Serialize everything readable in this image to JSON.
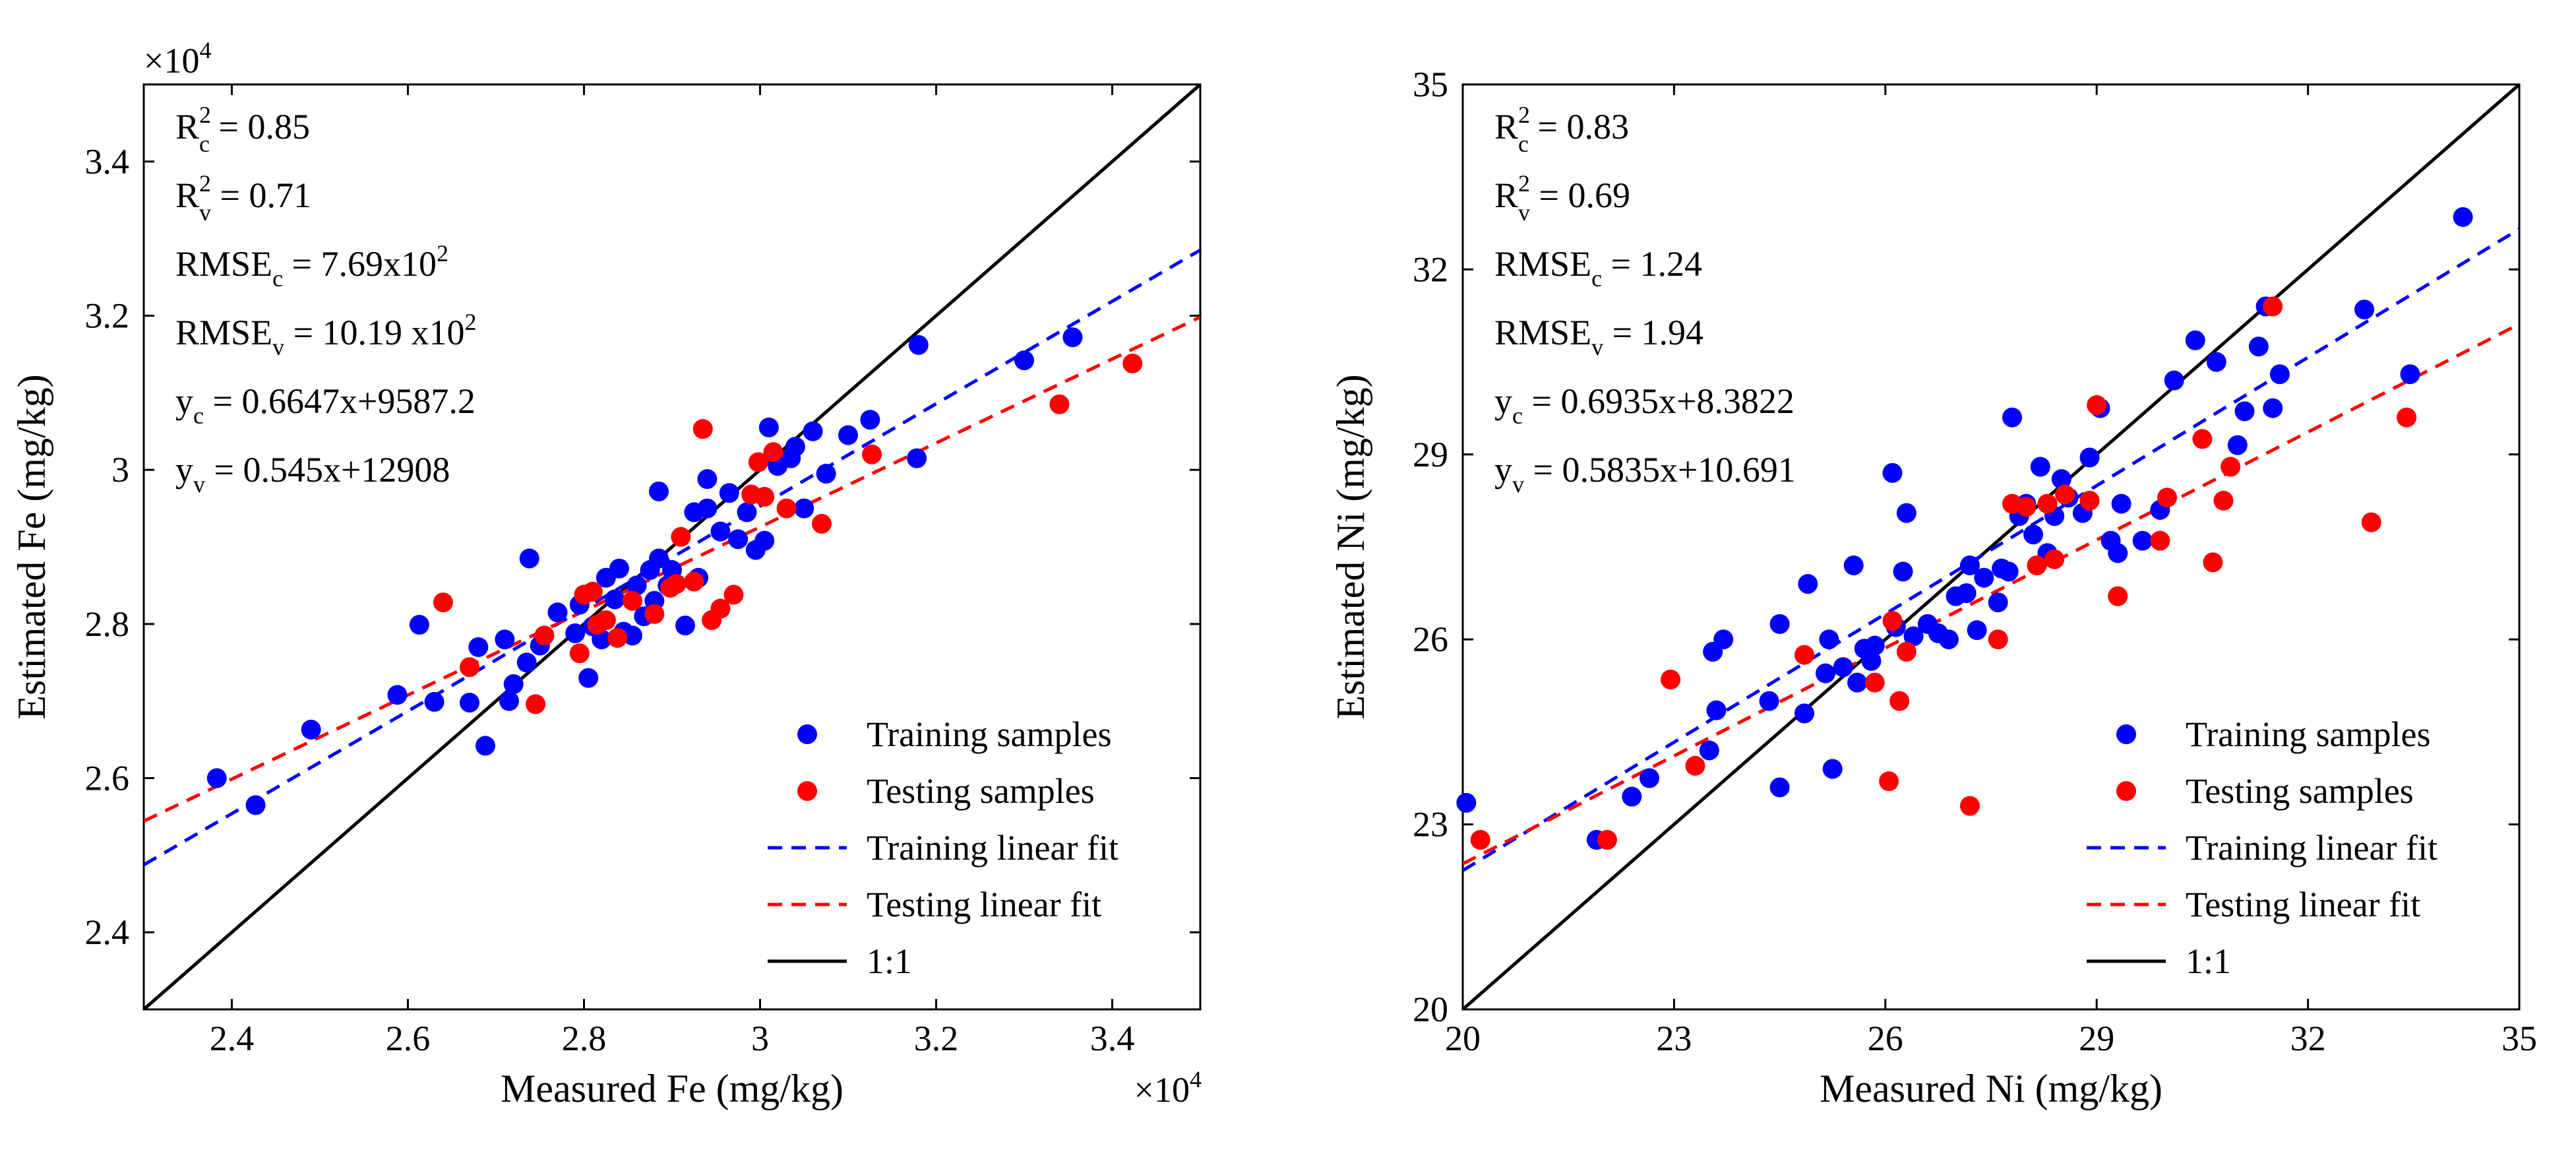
{
  "chart_data": [
    {
      "type": "scatter",
      "panel": "Fe",
      "xlabel": "Measured Fe (mg/kg)",
      "ylabel": "Estimated Fe (mg/kg)",
      "xlim": [
        23000,
        35000
      ],
      "ylim": [
        23000,
        35000
      ],
      "x_ticks": [
        24000,
        26000,
        28000,
        30000,
        32000,
        34000
      ],
      "x_tick_labels": [
        "2.4",
        "2.6",
        "2.8",
        "3",
        "3.2",
        "3.4"
      ],
      "y_ticks": [
        24000,
        26000,
        28000,
        30000,
        32000,
        34000
      ],
      "y_tick_labels": [
        "2.4",
        "2.6",
        "2.8",
        "3",
        "3.2",
        "3.4"
      ],
      "x_exponent_label": "×10",
      "x_exponent_power": "4",
      "y_exponent_label": "×10",
      "y_exponent_power": "4",
      "stats": [
        {
          "base": "R",
          "sup": "2",
          "sub": "c",
          "rest": " = 0.85"
        },
        {
          "base": "R",
          "sup": "2",
          "sub": "v",
          "rest": " = 0.71"
        },
        {
          "base": "RMSE",
          "sup": "",
          "sub": "c",
          "rest": " = 7.69x10",
          "rest_sup": "2"
        },
        {
          "base": "RMSE",
          "sup": "",
          "sub": "v",
          "rest": " = 10.19 x10",
          "rest_sup": "2"
        },
        {
          "base": "y",
          "sup": "",
          "sub": "c",
          "rest": " = 0.6647x+9587.2"
        },
        {
          "base": "y",
          "sup": "",
          "sub": "v",
          "rest": " = 0.545x+12908"
        }
      ],
      "legend": [
        {
          "label": "Training samples",
          "kind": "marker",
          "color": "#0000ff"
        },
        {
          "label": "Testing samples",
          "kind": "marker",
          "color": "#ff0000"
        },
        {
          "label": "Training linear fit",
          "kind": "dashed",
          "color": "#0000ff"
        },
        {
          "label": "Testing linear fit",
          "kind": "dashed",
          "color": "#ff0000"
        },
        {
          "label": "1:1",
          "kind": "solid",
          "color": "#000000"
        }
      ],
      "fits": [
        {
          "name": "Training linear fit",
          "slope": 0.6647,
          "intercept": 9587.2,
          "color": "#0000ff"
        },
        {
          "name": "Testing linear fit",
          "slope": 0.545,
          "intercept": 12908,
          "color": "#ff0000"
        }
      ],
      "series": [
        {
          "name": "Training samples",
          "color": "#0000ff",
          "points": [
            [
              23830,
              26000
            ],
            [
              24270,
              25650
            ],
            [
              24900,
              26630
            ],
            [
              25880,
              27080
            ],
            [
              26130,
              27990
            ],
            [
              26300,
              26990
            ],
            [
              26700,
              26980
            ],
            [
              26800,
              27700
            ],
            [
              26880,
              26420
            ],
            [
              27100,
              27800
            ],
            [
              27200,
              27220
            ],
            [
              27350,
              27500
            ],
            [
              27380,
              28850
            ],
            [
              27500,
              27720
            ],
            [
              27700,
              28150
            ],
            [
              27900,
              27880
            ],
            [
              27950,
              28250
            ],
            [
              28050,
              27300
            ],
            [
              28100,
              27970
            ],
            [
              28200,
              27800
            ],
            [
              28250,
              28600
            ],
            [
              28350,
              28320
            ],
            [
              28400,
              28720
            ],
            [
              28450,
              27900
            ],
            [
              28550,
              27850
            ],
            [
              28600,
              28500
            ],
            [
              28680,
              28100
            ],
            [
              28750,
              28700
            ],
            [
              28800,
              28300
            ],
            [
              28850,
              28850
            ],
            [
              28950,
              28500
            ],
            [
              29000,
              28700
            ],
            [
              29150,
              27980
            ],
            [
              29250,
              29450
            ],
            [
              29300,
              28600
            ],
            [
              29400,
              29500
            ],
            [
              29550,
              29200
            ],
            [
              29650,
              29700
            ],
            [
              29750,
              29100
            ],
            [
              29850,
              29450
            ],
            [
              29950,
              28960
            ],
            [
              30050,
              29080
            ],
            [
              30100,
              30550
            ],
            [
              30200,
              30050
            ],
            [
              30400,
              30300
            ],
            [
              30500,
              29500
            ],
            [
              30600,
              30500
            ],
            [
              30750,
              29950
            ],
            [
              31000,
              30450
            ],
            [
              31250,
              30650
            ],
            [
              31780,
              30150
            ],
            [
              31800,
              31620
            ],
            [
              33000,
              31420
            ],
            [
              33550,
              31720
            ],
            [
              28850,
              29720
            ],
            [
              29400,
              29880
            ],
            [
              30350,
              30150
            ],
            [
              27150,
              27000
            ]
          ]
        },
        {
          "name": "Testing samples",
          "color": "#ff0000",
          "points": [
            [
              26400,
              28280
            ],
            [
              26700,
              27440
            ],
            [
              27450,
              26960
            ],
            [
              27550,
              27850
            ],
            [
              27950,
              27620
            ],
            [
              28000,
              28380
            ],
            [
              28100,
              28420
            ],
            [
              28150,
              27990
            ],
            [
              28250,
              28050
            ],
            [
              28380,
              27820
            ],
            [
              28550,
              28300
            ],
            [
              28800,
              28130
            ],
            [
              28980,
              28470
            ],
            [
              29050,
              28520
            ],
            [
              29100,
              29130
            ],
            [
              29250,
              28550
            ],
            [
              29350,
              30530
            ],
            [
              29450,
              28050
            ],
            [
              29550,
              28200
            ],
            [
              29700,
              28380
            ],
            [
              29900,
              29680
            ],
            [
              29980,
              30100
            ],
            [
              30050,
              29650
            ],
            [
              30150,
              30230
            ],
            [
              30300,
              29500
            ],
            [
              30700,
              29300
            ],
            [
              31270,
              30200
            ],
            [
              33400,
              30850
            ],
            [
              34230,
              31380
            ]
          ]
        }
      ]
    },
    {
      "type": "scatter",
      "panel": "Ni",
      "xlabel": "Measured Ni (mg/kg)",
      "ylabel": "Estimated Ni (mg/kg)",
      "xlim": [
        20,
        35
      ],
      "ylim": [
        20,
        35
      ],
      "x_ticks": [
        20,
        23,
        26,
        29,
        32,
        35
      ],
      "x_tick_labels": [
        "20",
        "23",
        "26",
        "29",
        "32",
        "35"
      ],
      "y_ticks": [
        20,
        23,
        26,
        29,
        32,
        35
      ],
      "y_tick_labels": [
        "20",
        "23",
        "26",
        "29",
        "32",
        "35"
      ],
      "stats": [
        {
          "base": "R",
          "sup": "2",
          "sub": "c",
          "rest": " = 0.83"
        },
        {
          "base": "R",
          "sup": "2",
          "sub": "v",
          "rest": " = 0.69"
        },
        {
          "base": "RMSE",
          "sup": "",
          "sub": "c",
          "rest": " = 1.24"
        },
        {
          "base": "RMSE",
          "sup": "",
          "sub": "v",
          "rest": " = 1.94"
        },
        {
          "base": "y",
          "sup": "",
          "sub": "c",
          "rest": " = 0.6935x+8.3822"
        },
        {
          "base": "y",
          "sup": "",
          "sub": "v",
          "rest": " = 0.5835x+10.691"
        }
      ],
      "legend": [
        {
          "label": "Training samples",
          "kind": "marker",
          "color": "#0000ff"
        },
        {
          "label": "Testing samples",
          "kind": "marker",
          "color": "#ff0000"
        },
        {
          "label": "Training linear fit",
          "kind": "dashed",
          "color": "#0000ff"
        },
        {
          "label": "Testing linear fit",
          "kind": "dashed",
          "color": "#ff0000"
        },
        {
          "label": "1:1",
          "kind": "solid",
          "color": "#000000"
        }
      ],
      "fits": [
        {
          "name": "Training linear fit",
          "slope": 0.6935,
          "intercept": 8.3822,
          "color": "#0000ff"
        },
        {
          "name": "Testing linear fit",
          "slope": 0.5835,
          "intercept": 10.691,
          "color": "#ff0000"
        }
      ],
      "series": [
        {
          "name": "Training samples",
          "color": "#0000ff",
          "points": [
            [
              20.05,
              23.35
            ],
            [
              21.9,
              22.75
            ],
            [
              22.4,
              23.45
            ],
            [
              22.65,
              23.75
            ],
            [
              23.5,
              24.2
            ],
            [
              23.55,
              25.8
            ],
            [
              23.6,
              24.85
            ],
            [
              23.7,
              26.0
            ],
            [
              24.35,
              25.0
            ],
            [
              24.5,
              23.6
            ],
            [
              24.5,
              26.25
            ],
            [
              24.85,
              24.8
            ],
            [
              24.9,
              26.9
            ],
            [
              25.15,
              25.45
            ],
            [
              25.2,
              26.0
            ],
            [
              25.25,
              23.9
            ],
            [
              25.4,
              25.55
            ],
            [
              25.55,
              27.2
            ],
            [
              25.6,
              25.3
            ],
            [
              25.7,
              25.85
            ],
            [
              25.8,
              25.65
            ],
            [
              25.85,
              25.9
            ],
            [
              26.1,
              28.7
            ],
            [
              26.15,
              26.2
            ],
            [
              26.25,
              27.1
            ],
            [
              26.3,
              28.05
            ],
            [
              26.4,
              26.05
            ],
            [
              26.6,
              26.25
            ],
            [
              26.75,
              26.1
            ],
            [
              26.9,
              26.0
            ],
            [
              27.0,
              26.7
            ],
            [
              27.15,
              26.75
            ],
            [
              27.2,
              27.2
            ],
            [
              27.3,
              26.15
            ],
            [
              27.4,
              27.0
            ],
            [
              27.6,
              26.6
            ],
            [
              27.65,
              27.15
            ],
            [
              27.75,
              27.1
            ],
            [
              27.8,
              29.6
            ],
            [
              27.9,
              28.0
            ],
            [
              28.0,
              28.2
            ],
            [
              28.1,
              27.7
            ],
            [
              28.2,
              28.8
            ],
            [
              28.3,
              27.4
            ],
            [
              28.4,
              28.0
            ],
            [
              28.5,
              28.6
            ],
            [
              28.6,
              28.3
            ],
            [
              28.8,
              28.05
            ],
            [
              28.9,
              28.95
            ],
            [
              29.05,
              29.75
            ],
            [
              29.2,
              27.6
            ],
            [
              29.3,
              27.4
            ],
            [
              29.35,
              28.2
            ],
            [
              29.65,
              27.6
            ],
            [
              29.9,
              28.1
            ],
            [
              30.1,
              30.2
            ],
            [
              30.4,
              30.85
            ],
            [
              30.7,
              30.5
            ],
            [
              31.0,
              29.15
            ],
            [
              31.1,
              29.7
            ],
            [
              31.3,
              30.75
            ],
            [
              31.4,
              31.4
            ],
            [
              31.5,
              29.75
            ],
            [
              31.6,
              30.3
            ],
            [
              32.8,
              31.35
            ],
            [
              33.45,
              30.3
            ],
            [
              34.2,
              32.85
            ]
          ]
        },
        {
          "name": "Testing samples",
          "color": "#ff0000",
          "points": [
            [
              20.25,
              22.75
            ],
            [
              22.05,
              22.75
            ],
            [
              22.95,
              25.35
            ],
            [
              23.3,
              23.95
            ],
            [
              24.85,
              25.75
            ],
            [
              25.85,
              25.3
            ],
            [
              26.05,
              23.7
            ],
            [
              26.1,
              26.3
            ],
            [
              26.2,
              25.0
            ],
            [
              26.3,
              25.8
            ],
            [
              27.2,
              23.3
            ],
            [
              27.6,
              26.0
            ],
            [
              27.8,
              28.2
            ],
            [
              28.0,
              28.15
            ],
            [
              28.15,
              27.2
            ],
            [
              28.3,
              28.2
            ],
            [
              28.4,
              27.3
            ],
            [
              28.55,
              28.35
            ],
            [
              28.9,
              28.25
            ],
            [
              29.0,
              29.8
            ],
            [
              29.3,
              26.7
            ],
            [
              30.0,
              28.3
            ],
            [
              30.5,
              29.25
            ],
            [
              30.65,
              27.25
            ],
            [
              30.8,
              28.25
            ],
            [
              30.9,
              28.8
            ],
            [
              31.5,
              31.4
            ],
            [
              32.9,
              27.9
            ],
            [
              33.4,
              29.6
            ],
            [
              29.9,
              27.6
            ]
          ]
        }
      ]
    }
  ]
}
